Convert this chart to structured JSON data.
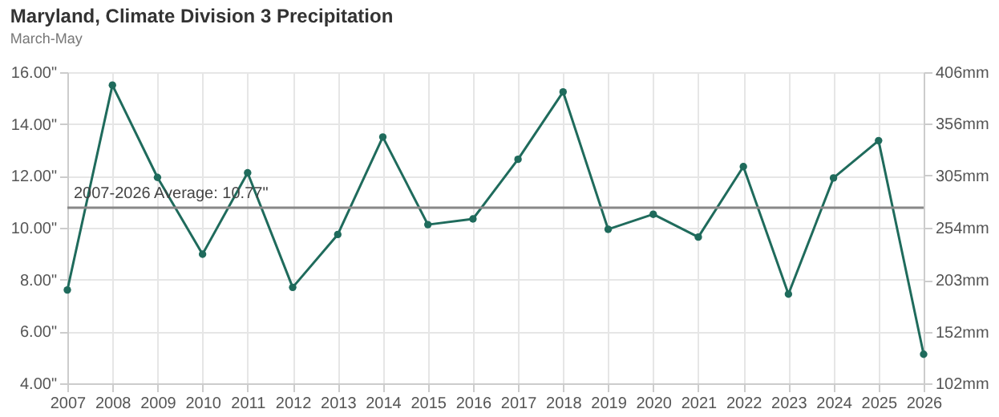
{
  "chart_data": {
    "type": "line",
    "title": "Maryland, Climate Division 3 Precipitation",
    "subtitle": "March-May",
    "categories": [
      "2007",
      "2008",
      "2009",
      "2010",
      "2011",
      "2012",
      "2013",
      "2014",
      "2015",
      "2016",
      "2017",
      "2018",
      "2019",
      "2020",
      "2021",
      "2022",
      "2023",
      "2024",
      "2025",
      "2026"
    ],
    "series": [
      {
        "color": "#1f6b5c",
        "values": [
          7.6,
          15.5,
          11.94,
          8.98,
          12.12,
          7.7,
          9.74,
          13.5,
          10.12,
          10.34,
          12.64,
          15.24,
          9.94,
          10.52,
          9.64,
          12.36,
          7.44,
          11.92,
          13.36,
          5.12
        ]
      }
    ],
    "ylim": [
      4,
      16
    ],
    "yticks": [
      {
        "value": 4,
        "label": "4.00\""
      },
      {
        "value": 6,
        "label": "6.00\""
      },
      {
        "value": 8,
        "label": "8.00\""
      },
      {
        "value": 10,
        "label": "10.00\""
      },
      {
        "value": 12,
        "label": "12.00\""
      },
      {
        "value": 14,
        "label": "14.00\""
      },
      {
        "value": 16,
        "label": "16.00\""
      }
    ],
    "y2lim": [
      102,
      406
    ],
    "y2ticks": [
      {
        "value": 102,
        "label": "102mm"
      },
      {
        "value": 152,
        "label": "152mm"
      },
      {
        "value": 203,
        "label": "203mm"
      },
      {
        "value": 254,
        "label": "254mm"
      },
      {
        "value": 305,
        "label": "305mm"
      },
      {
        "value": 356,
        "label": "356mm"
      },
      {
        "value": 406,
        "label": "406mm"
      }
    ],
    "ref_lines": [
      {
        "axis": "y",
        "value": 10.77,
        "label": "2007-2026 Average: 10.77\"",
        "color": "#888888"
      }
    ],
    "grid": true,
    "marker": "circle",
    "line_style": "solid",
    "legend": false
  }
}
